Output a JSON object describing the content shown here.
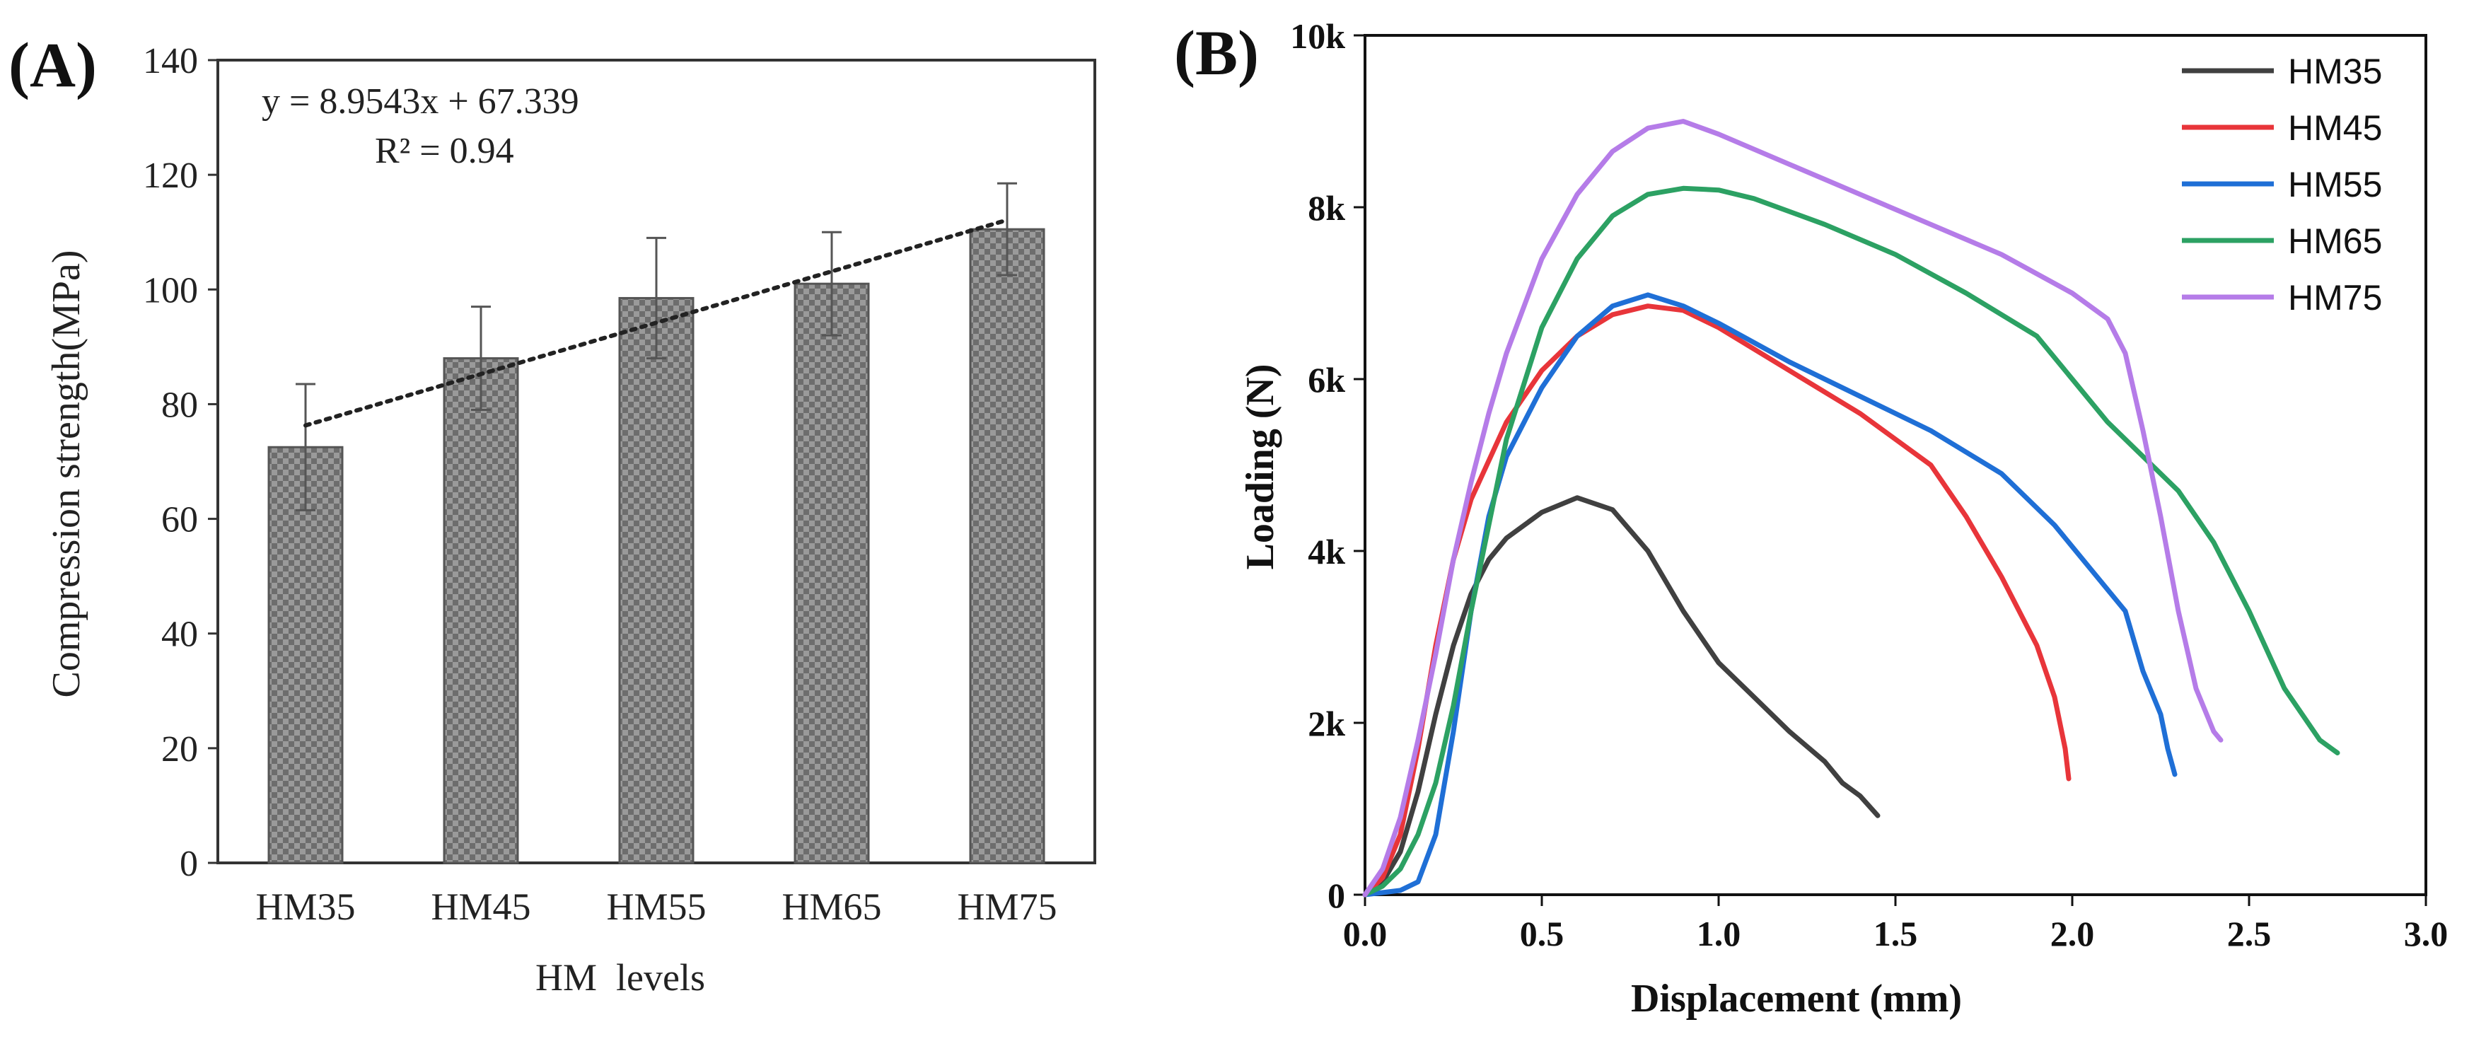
{
  "panels": {
    "a_label": "(A)",
    "b_label": "(B)"
  },
  "chart_data": [
    {
      "type": "bar",
      "panel": "A",
      "categories": [
        "HM35",
        "HM45",
        "HM55",
        "HM65",
        "HM75"
      ],
      "values": [
        72.5,
        88,
        98.5,
        101,
        110.5
      ],
      "error": [
        11,
        9,
        10.5,
        9,
        8
      ],
      "xlabel": "HM  levels",
      "ylabel": "Compression strength(MPa)",
      "ylim": [
        0,
        140
      ],
      "yticks": [
        0,
        20,
        40,
        60,
        80,
        100,
        120,
        140
      ],
      "bar_fill": "checkered gray",
      "trendline": {
        "equation": "y = 8.9543x + 67.339",
        "r2": "R² = 0.94",
        "slope": 8.9543,
        "intercept": 67.339,
        "style": "dotted"
      },
      "grid": false
    },
    {
      "type": "line",
      "panel": "B",
      "xlabel": "Displacement (mm)",
      "ylabel": "Loading (N)",
      "xlim": [
        0,
        3.0
      ],
      "ylim": [
        0,
        10000
      ],
      "xticks": [
        0.0,
        0.5,
        1.0,
        1.5,
        2.0,
        2.5,
        3.0
      ],
      "xtick_labels": [
        "0.0",
        "0.5",
        "1.0",
        "1.5",
        "2.0",
        "2.5",
        "3.0"
      ],
      "yticks": [
        0,
        2000,
        4000,
        6000,
        8000,
        10000
      ],
      "ytick_labels": [
        "0",
        "2k",
        "4k",
        "6k",
        "8k",
        "10k"
      ],
      "legend_position": "top-right",
      "grid": false,
      "series": [
        {
          "name": "HM35",
          "color": "#404040",
          "x": [
            0,
            0.05,
            0.1,
            0.15,
            0.2,
            0.25,
            0.3,
            0.35,
            0.4,
            0.5,
            0.6,
            0.7,
            0.8,
            0.9,
            1.0,
            1.1,
            1.2,
            1.3,
            1.35,
            1.4,
            1.45
          ],
          "y": [
            0,
            150,
            500,
            1200,
            2100,
            2900,
            3500,
            3900,
            4150,
            4450,
            4620,
            4480,
            4000,
            3300,
            2700,
            2300,
            1900,
            1550,
            1300,
            1150,
            920
          ]
        },
        {
          "name": "HM45",
          "color": "#e8353a",
          "x": [
            0,
            0.05,
            0.1,
            0.15,
            0.2,
            0.25,
            0.3,
            0.4,
            0.5,
            0.6,
            0.7,
            0.8,
            0.9,
            1.0,
            1.2,
            1.4,
            1.6,
            1.7,
            1.8,
            1.9,
            1.95,
            1.98,
            1.99
          ],
          "y": [
            0,
            200,
            700,
            1700,
            2900,
            3900,
            4600,
            5500,
            6100,
            6500,
            6750,
            6850,
            6800,
            6600,
            6100,
            5600,
            5000,
            4400,
            3700,
            2900,
            2300,
            1700,
            1350
          ]
        },
        {
          "name": "HM55",
          "color": "#1f6fd6",
          "x": [
            0,
            0.1,
            0.15,
            0.2,
            0.25,
            0.3,
            0.35,
            0.4,
            0.5,
            0.6,
            0.7,
            0.8,
            0.9,
            1.0,
            1.2,
            1.4,
            1.6,
            1.8,
            1.95,
            2.05,
            2.15,
            2.2,
            2.25,
            2.27,
            2.29
          ],
          "y": [
            0,
            50,
            150,
            700,
            1900,
            3300,
            4400,
            5100,
            5900,
            6500,
            6850,
            6980,
            6850,
            6650,
            6200,
            5800,
            5400,
            4900,
            4300,
            3800,
            3300,
            2600,
            2100,
            1700,
            1400
          ]
        },
        {
          "name": "HM65",
          "color": "#2ca163",
          "x": [
            0,
            0.05,
            0.1,
            0.15,
            0.2,
            0.25,
            0.3,
            0.4,
            0.5,
            0.6,
            0.7,
            0.8,
            0.9,
            1.0,
            1.1,
            1.3,
            1.5,
            1.7,
            1.9,
            2.0,
            2.1,
            2.2,
            2.3,
            2.4,
            2.5,
            2.6,
            2.7,
            2.75
          ],
          "y": [
            0,
            100,
            300,
            700,
            1300,
            2200,
            3300,
            5300,
            6600,
            7400,
            7900,
            8150,
            8220,
            8200,
            8100,
            7800,
            7450,
            7000,
            6500,
            6000,
            5500,
            5100,
            4700,
            4100,
            3300,
            2400,
            1800,
            1650
          ]
        },
        {
          "name": "HM75",
          "color": "#b57ce8",
          "x": [
            0,
            0.05,
            0.1,
            0.15,
            0.2,
            0.25,
            0.3,
            0.35,
            0.4,
            0.5,
            0.6,
            0.7,
            0.8,
            0.9,
            1.0,
            1.2,
            1.4,
            1.6,
            1.8,
            2.0,
            2.1,
            2.15,
            2.2,
            2.25,
            2.3,
            2.35,
            2.4,
            2.42
          ],
          "y": [
            0,
            300,
            900,
            1800,
            2800,
            3900,
            4800,
            5600,
            6300,
            7400,
            8150,
            8650,
            8920,
            9000,
            8850,
            8500,
            8150,
            7800,
            7450,
            7000,
            6700,
            6300,
            5400,
            4400,
            3300,
            2400,
            1900,
            1800
          ]
        }
      ]
    }
  ]
}
